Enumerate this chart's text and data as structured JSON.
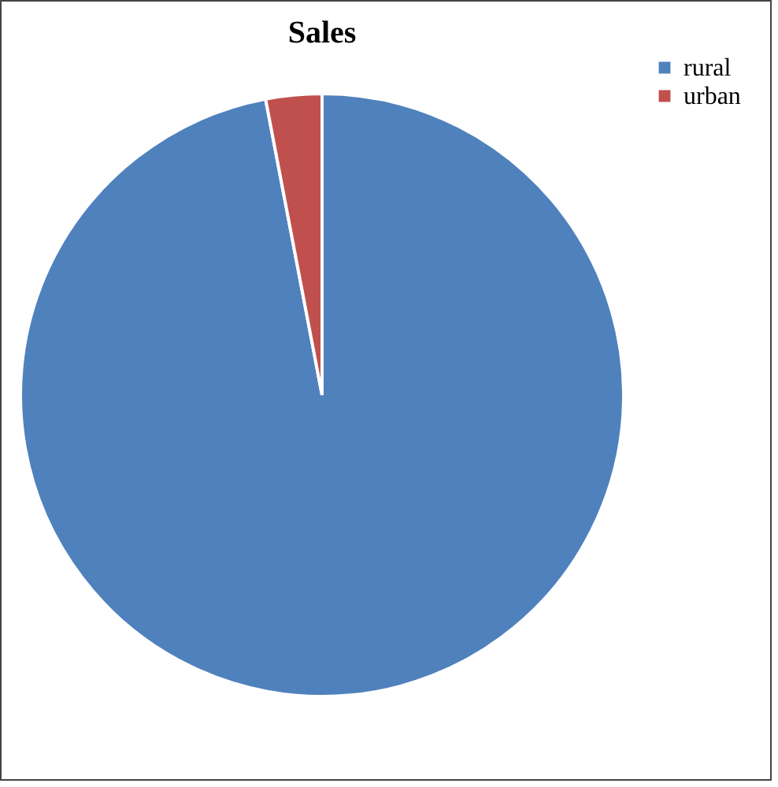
{
  "chart_data": {
    "type": "pie",
    "title": "Sales",
    "categories": [
      "rural",
      "urban"
    ],
    "values": [
      97,
      3
    ],
    "colors": [
      "#4f81bd",
      "#c0504d"
    ],
    "legend": "right"
  }
}
